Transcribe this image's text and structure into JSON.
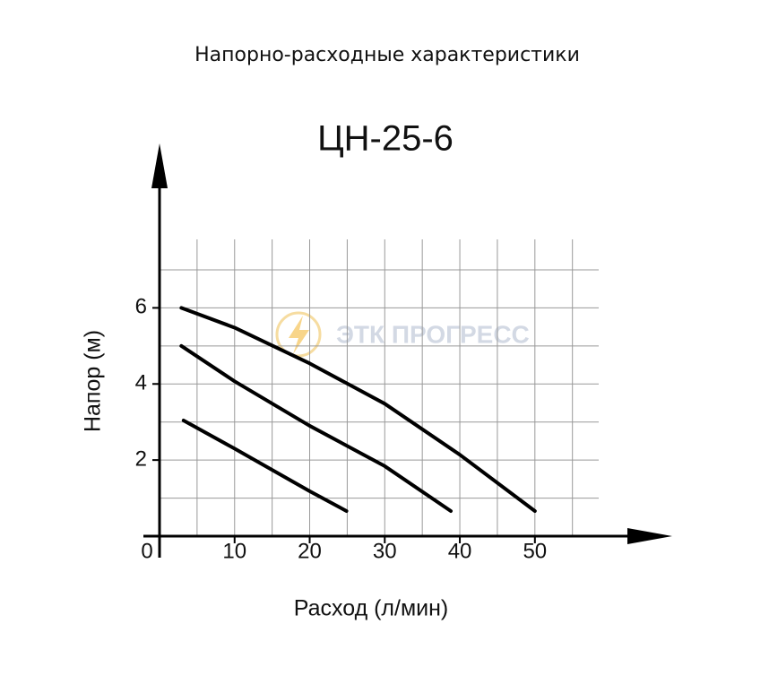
{
  "chart_data": {
    "type": "line",
    "title": "Напорно-расходные характеристики",
    "subtitle": "ЦН-25-6",
    "watermark": "ЭТК ПРОГРЕСС",
    "x_label": "Расход (л/мин)",
    "y_label": "Напор (м)",
    "xlim": [
      0,
      58.5
    ],
    "ylim": [
      0,
      7.8
    ],
    "xticks": [
      0,
      10,
      20,
      30,
      40,
      50
    ],
    "yticks": [
      2,
      4,
      6
    ],
    "xgrid": [
      5,
      10,
      15,
      20,
      25,
      30,
      35,
      40,
      45,
      50,
      55
    ],
    "ygrid": [
      1,
      2,
      3,
      4,
      5,
      6,
      7
    ],
    "grid": true,
    "series": [
      {
        "color": "#000000",
        "x": [
          2.9,
          10,
          20,
          30,
          40,
          50
        ],
        "values": [
          6.0,
          5.48,
          4.54,
          3.48,
          2.14,
          0.66
        ]
      },
      {
        "color": "#000000",
        "x": [
          2.9,
          10,
          20,
          30,
          38.8
        ],
        "values": [
          5.0,
          4.07,
          2.9,
          1.84,
          0.66
        ]
      },
      {
        "color": "#000000",
        "x": [
          3.2,
          10,
          20,
          24.9
        ],
        "values": [
          3.04,
          2.3,
          1.18,
          0.66
        ]
      }
    ]
  }
}
